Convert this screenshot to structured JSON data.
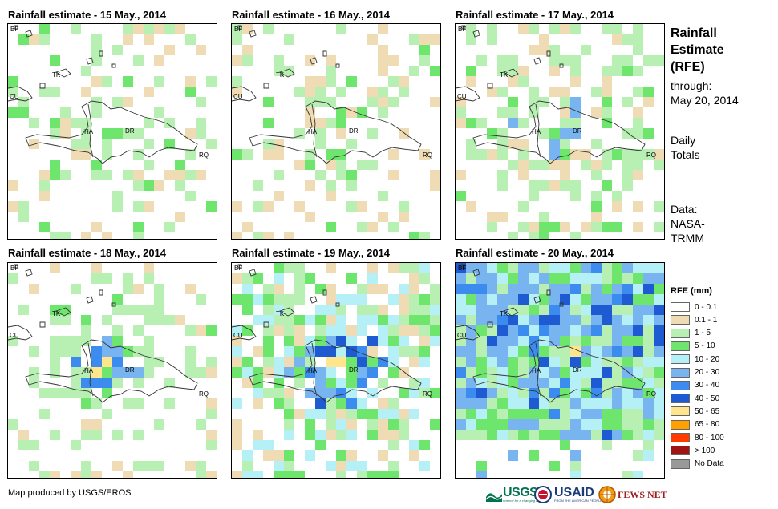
{
  "panels": [
    {
      "title": "Rainfall estimate - 15 May., 2014",
      "seed": 15,
      "intensity": 0
    },
    {
      "title": "Rainfall estimate - 16 May., 2014",
      "seed": 16,
      "intensity": 0
    },
    {
      "title": "Rainfall estimate - 17 May., 2014",
      "seed": 17,
      "intensity": 1
    },
    {
      "title": "Rainfall estimate - 18 May., 2014",
      "seed": 18,
      "intensity": 2
    },
    {
      "title": "Rainfall estimate - 19 May., 2014",
      "seed": 19,
      "intensity": 3
    },
    {
      "title": "Rainfall estimate - 20 May., 2014",
      "seed": 20,
      "intensity": 4
    }
  ],
  "map_labels": {
    "bf": "BF",
    "cu": "CU",
    "tk": "TK",
    "ha": "HA",
    "dr": "DR",
    "rq": "RQ"
  },
  "side": {
    "title_line1": "Rainfall",
    "title_line2": "Estimate",
    "title_line3": "(RFE)",
    "through": "through:",
    "date": "May 20, 2014",
    "daily": "Daily",
    "totals": "Totals",
    "data_label": "Data:",
    "source1": "NASA-",
    "source2": "TRMM"
  },
  "legend": {
    "title": "RFE (mm)",
    "items": [
      {
        "label": "0 - 0.1",
        "color": "#ffffff"
      },
      {
        "label": "0.1 - 1",
        "color": "#f0dcb4"
      },
      {
        "label": "1 - 5",
        "color": "#b8f0b4"
      },
      {
        "label": "5 - 10",
        "color": "#6ee66e"
      },
      {
        "label": "10 - 20",
        "color": "#b4f0f5"
      },
      {
        "label": "20 - 30",
        "color": "#78b4f0"
      },
      {
        "label": "30 - 40",
        "color": "#3c8cf0"
      },
      {
        "label": "40 - 50",
        "color": "#1e5ad2"
      },
      {
        "label": "50 - 65",
        "color": "#ffe68c"
      },
      {
        "label": "65 - 80",
        "color": "#ffa000"
      },
      {
        "label": "80 - 100",
        "color": "#ff3c00"
      },
      {
        "label": "> 100",
        "color": "#a01414"
      },
      {
        "label": "No Data",
        "color": "#999999"
      }
    ]
  },
  "footer": {
    "credit": "Map produced by USGS/EROS",
    "usgs": "USGS",
    "usgs_tagline": "science for a changing world",
    "usaid": "USAID",
    "usaid_tagline": "FROM THE AMERICAN PEOPLE",
    "fews": "FEWS NET"
  }
}
